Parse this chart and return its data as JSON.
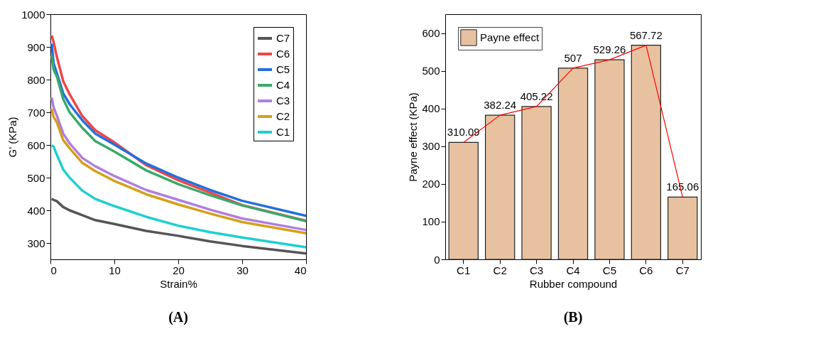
{
  "chart_data": [
    {
      "type": "line",
      "xlabel": "Strain%",
      "ylabel": "G' (KPa)",
      "xlim": [
        0,
        40
      ],
      "xticks": [
        0,
        10,
        20,
        30,
        40
      ],
      "ylim": [
        250,
        1000
      ],
      "yticks": [
        300,
        400,
        500,
        600,
        700,
        800,
        900,
        1000
      ],
      "legend": "top right",
      "grid": false,
      "line_style": "solid",
      "annotations": [
        "(A)"
      ],
      "x": [
        0.2,
        0.5,
        1,
        2,
        3,
        5,
        7,
        10,
        15,
        20,
        25,
        30,
        40
      ],
      "series": [
        {
          "name": "C7",
          "color": "#555555",
          "values": [
            435,
            432,
            428,
            410,
            400,
            385,
            370,
            358,
            337,
            322,
            305,
            291,
            268
          ]
        },
        {
          "name": "C6",
          "color": "#f04545",
          "values": [
            935,
            915,
            870,
            795,
            755,
            688,
            645,
            608,
            538,
            492,
            454,
            416,
            368
          ]
        },
        {
          "name": "C5",
          "color": "#2070e0",
          "values": [
            910,
            850,
            820,
            758,
            725,
            675,
            635,
            601,
            543,
            500,
            462,
            429,
            383
          ]
        },
        {
          "name": "C4",
          "color": "#3aa86a",
          "values": [
            872,
            830,
            810,
            740,
            700,
            652,
            612,
            580,
            522,
            480,
            446,
            415,
            367
          ]
        },
        {
          "name": "C3",
          "color": "#b07ee0",
          "values": [
            745,
            715,
            690,
            635,
            605,
            560,
            535,
            505,
            462,
            432,
            402,
            375,
            340
          ]
        },
        {
          "name": "C2",
          "color": "#d4a017",
          "values": [
            710,
            685,
            670,
            615,
            590,
            545,
            520,
            490,
            449,
            418,
            390,
            364,
            330
          ]
        },
        {
          "name": "C1",
          "color": "#1ecfcf",
          "values": [
            598,
            595,
            570,
            525,
            500,
            460,
            435,
            413,
            380,
            353,
            333,
            317,
            287
          ]
        }
      ]
    },
    {
      "type": "bar",
      "xlabel": "Rubber compound",
      "ylabel": "Payne effect (KPa)",
      "ylim": [
        0,
        650
      ],
      "yticks": [
        0,
        100,
        200,
        300,
        400,
        500,
        600
      ],
      "legend": "top left",
      "annotations": [
        "(B)"
      ],
      "categories": [
        "C1",
        "C2",
        "C3",
        "C4",
        "C5",
        "C6",
        "C7"
      ],
      "series": [
        {
          "name": "Payne effect",
          "color": "#e8c2a0",
          "values": [
            310.09,
            382.24,
            405.22,
            507,
            529.26,
            567.72,
            165.06
          ],
          "value_labels": [
            "310.09",
            "382.24",
            "405.22",
            "507",
            "529.26",
            "567.72",
            "165.06"
          ]
        },
        {
          "type": "line",
          "color": "#ff0000",
          "values": [
            310.09,
            382.24,
            405.22,
            507,
            529.26,
            567.72,
            165.06
          ]
        }
      ]
    }
  ]
}
